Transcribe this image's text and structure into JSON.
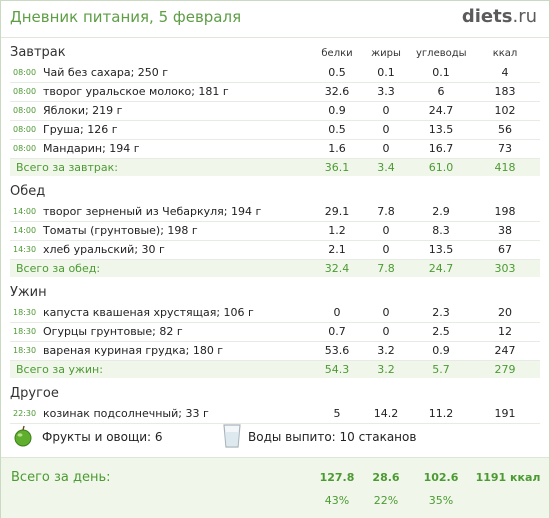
{
  "header": {
    "title": "Дневник питания, 5 февраля",
    "logo_main": "diets",
    "logo_tld": ".ru"
  },
  "columns": {
    "protein": "белки",
    "fat": "жиры",
    "carbs": "углеводы",
    "kcal": "ккал"
  },
  "meals": [
    {
      "title": "Завтрак",
      "items": [
        {
          "time": "08:00",
          "food": "Чай без сахара; 250 г",
          "protein": "0.5",
          "fat": "0.1",
          "carbs": "0.1",
          "kcal": "4"
        },
        {
          "time": "08:00",
          "food": "творог уральское молоко; 181 г",
          "protein": "32.6",
          "fat": "3.3",
          "carbs": "6",
          "kcal": "183"
        },
        {
          "time": "08:00",
          "food": "Яблоки; 219 г",
          "protein": "0.9",
          "fat": "0",
          "carbs": "24.7",
          "kcal": "102"
        },
        {
          "time": "08:00",
          "food": "Груша; 126 г",
          "protein": "0.5",
          "fat": "0",
          "carbs": "13.5",
          "kcal": "56"
        },
        {
          "time": "08:00",
          "food": "Мандарин; 194 г",
          "protein": "1.6",
          "fat": "0",
          "carbs": "16.7",
          "kcal": "73"
        }
      ],
      "total": {
        "label": "Всего за завтрак:",
        "protein": "36.1",
        "fat": "3.4",
        "carbs": "61.0",
        "kcal": "418"
      }
    },
    {
      "title": "Обед",
      "items": [
        {
          "time": "14:00",
          "food": "творог зерненый из Чебаркуля; 194 г",
          "protein": "29.1",
          "fat": "7.8",
          "carbs": "2.9",
          "kcal": "198"
        },
        {
          "time": "14:00",
          "food": "Томаты (грунтовые); 198 г",
          "protein": "1.2",
          "fat": "0",
          "carbs": "8.3",
          "kcal": "38"
        },
        {
          "time": "14:30",
          "food": "хлеб уральский; 30 г",
          "protein": "2.1",
          "fat": "0",
          "carbs": "13.5",
          "kcal": "67"
        }
      ],
      "total": {
        "label": "Всего за обед:",
        "protein": "32.4",
        "fat": "7.8",
        "carbs": "24.7",
        "kcal": "303"
      }
    },
    {
      "title": "Ужин",
      "items": [
        {
          "time": "18:30",
          "food": "капуста квашеная хрустящая; 106 г",
          "protein": "0",
          "fat": "0",
          "carbs": "2.3",
          "kcal": "20"
        },
        {
          "time": "18:30",
          "food": "Огурцы грунтовые; 82 г",
          "protein": "0.7",
          "fat": "0",
          "carbs": "2.5",
          "kcal": "12"
        },
        {
          "time": "18:30",
          "food": "вареная куриная грудка; 180 г",
          "protein": "53.6",
          "fat": "3.2",
          "carbs": "0.9",
          "kcal": "247"
        }
      ],
      "total": {
        "label": "Всего за ужин:",
        "protein": "54.3",
        "fat": "3.2",
        "carbs": "5.7",
        "kcal": "279"
      }
    },
    {
      "title": "Другое",
      "items": [
        {
          "time": "22:30",
          "food": "козинак подсолнечный; 33 г",
          "protein": "5",
          "fat": "14.2",
          "carbs": "11.2",
          "kcal": "191"
        }
      ]
    }
  ],
  "extras": {
    "fruits": "Фрукты и овощи: 6",
    "water": "Воды выпито: 10 стаканов"
  },
  "day_total": {
    "label": "Всего за день:",
    "protein": "127.8",
    "fat": "28.6",
    "carbs": "102.6",
    "kcal": "1191 ккал",
    "protein_pct": "43%",
    "fat_pct": "22%",
    "carbs_pct": "35%"
  },
  "colors": {
    "accent": "#4c9a33",
    "total_bg": "#f0f7ea",
    "apple": "#5fae2e"
  },
  "icons": {
    "fruit": "apple-icon",
    "water": "glass-icon"
  }
}
